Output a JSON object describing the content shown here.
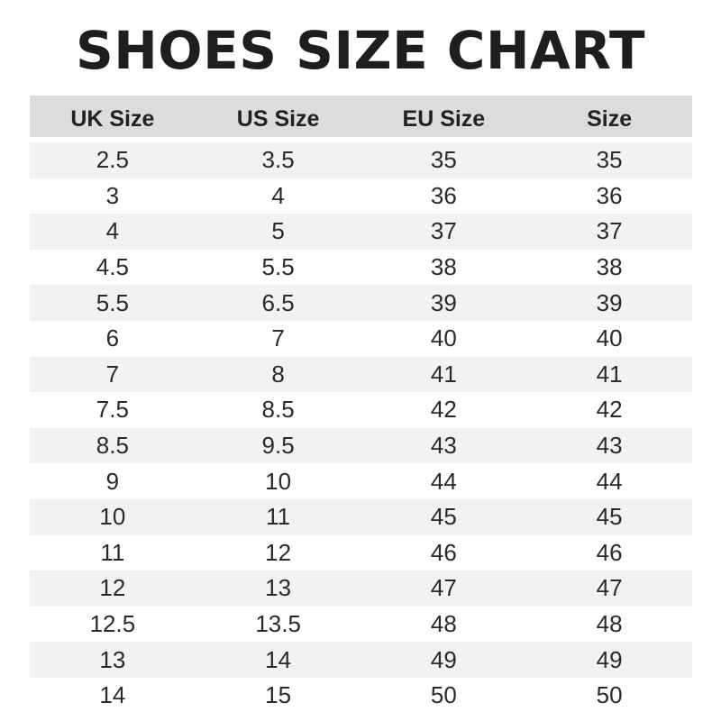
{
  "chart_data": {
    "type": "table",
    "title": "SHOES SIZE CHART",
    "columns": [
      "UK Size",
      "US Size",
      "EU Size",
      "Size"
    ],
    "rows": [
      [
        "2.5",
        "3.5",
        "35",
        "35"
      ],
      [
        "3",
        "4",
        "36",
        "36"
      ],
      [
        "4",
        "5",
        "37",
        "37"
      ],
      [
        "4.5",
        "5.5",
        "38",
        "38"
      ],
      [
        "5.5",
        "6.5",
        "39",
        "39"
      ],
      [
        "6",
        "7",
        "40",
        "40"
      ],
      [
        "7",
        "8",
        "41",
        "41"
      ],
      [
        "7.5",
        "8.5",
        "42",
        "42"
      ],
      [
        "8.5",
        "9.5",
        "43",
        "43"
      ],
      [
        "9",
        "10",
        "44",
        "44"
      ],
      [
        "10",
        "11",
        "45",
        "45"
      ],
      [
        "11",
        "12",
        "46",
        "46"
      ],
      [
        "12",
        "13",
        "47",
        "47"
      ],
      [
        "12.5",
        "13.5",
        "48",
        "48"
      ],
      [
        "13",
        "14",
        "49",
        "49"
      ],
      [
        "14",
        "15",
        "50",
        "50"
      ]
    ],
    "colors": {
      "header_bg": "#dcdcdc",
      "stripe_bg": "#f2f2f2",
      "text": "#222222"
    }
  }
}
